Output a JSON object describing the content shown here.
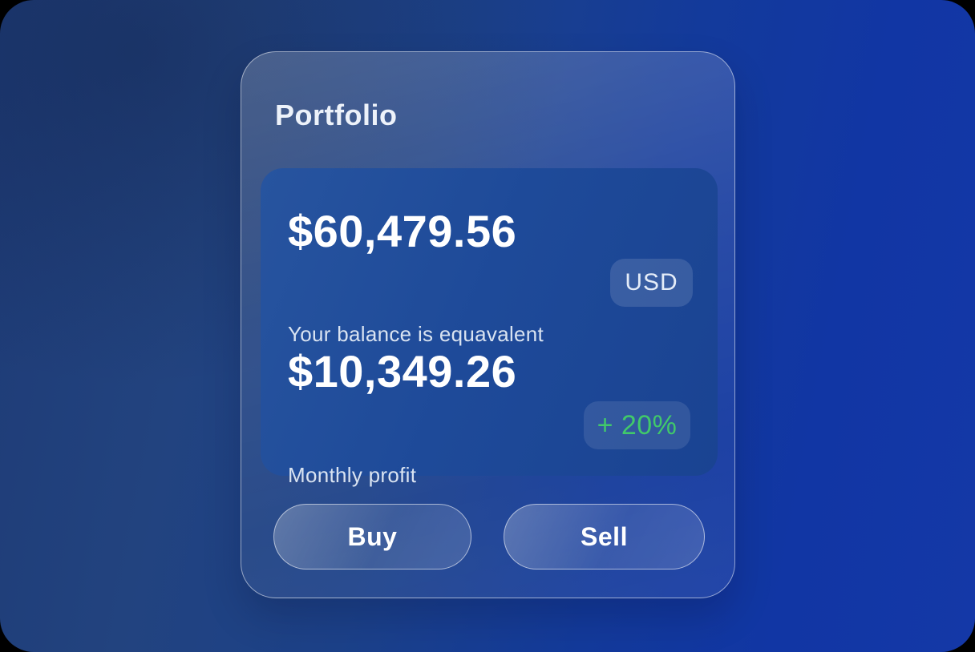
{
  "portfolio": {
    "title": "Portfolio",
    "balance": {
      "amount": "$60,479.56",
      "caption": "Your balance is equavalent",
      "currency": "USD"
    },
    "profit": {
      "amount": "$10,349.26",
      "caption": "Monthly profit",
      "change": "+ 20%"
    },
    "actions": {
      "buy": "Buy",
      "sell": "Sell"
    }
  },
  "colors": {
    "background_gradient_start": "#1e3b76",
    "background_gradient_end": "#1438a7",
    "inner_card_blue": "#1e4a99",
    "profit_change_green": "#41c96a",
    "text_primary": "#ffffff",
    "text_secondary": "#d9e3f1"
  }
}
